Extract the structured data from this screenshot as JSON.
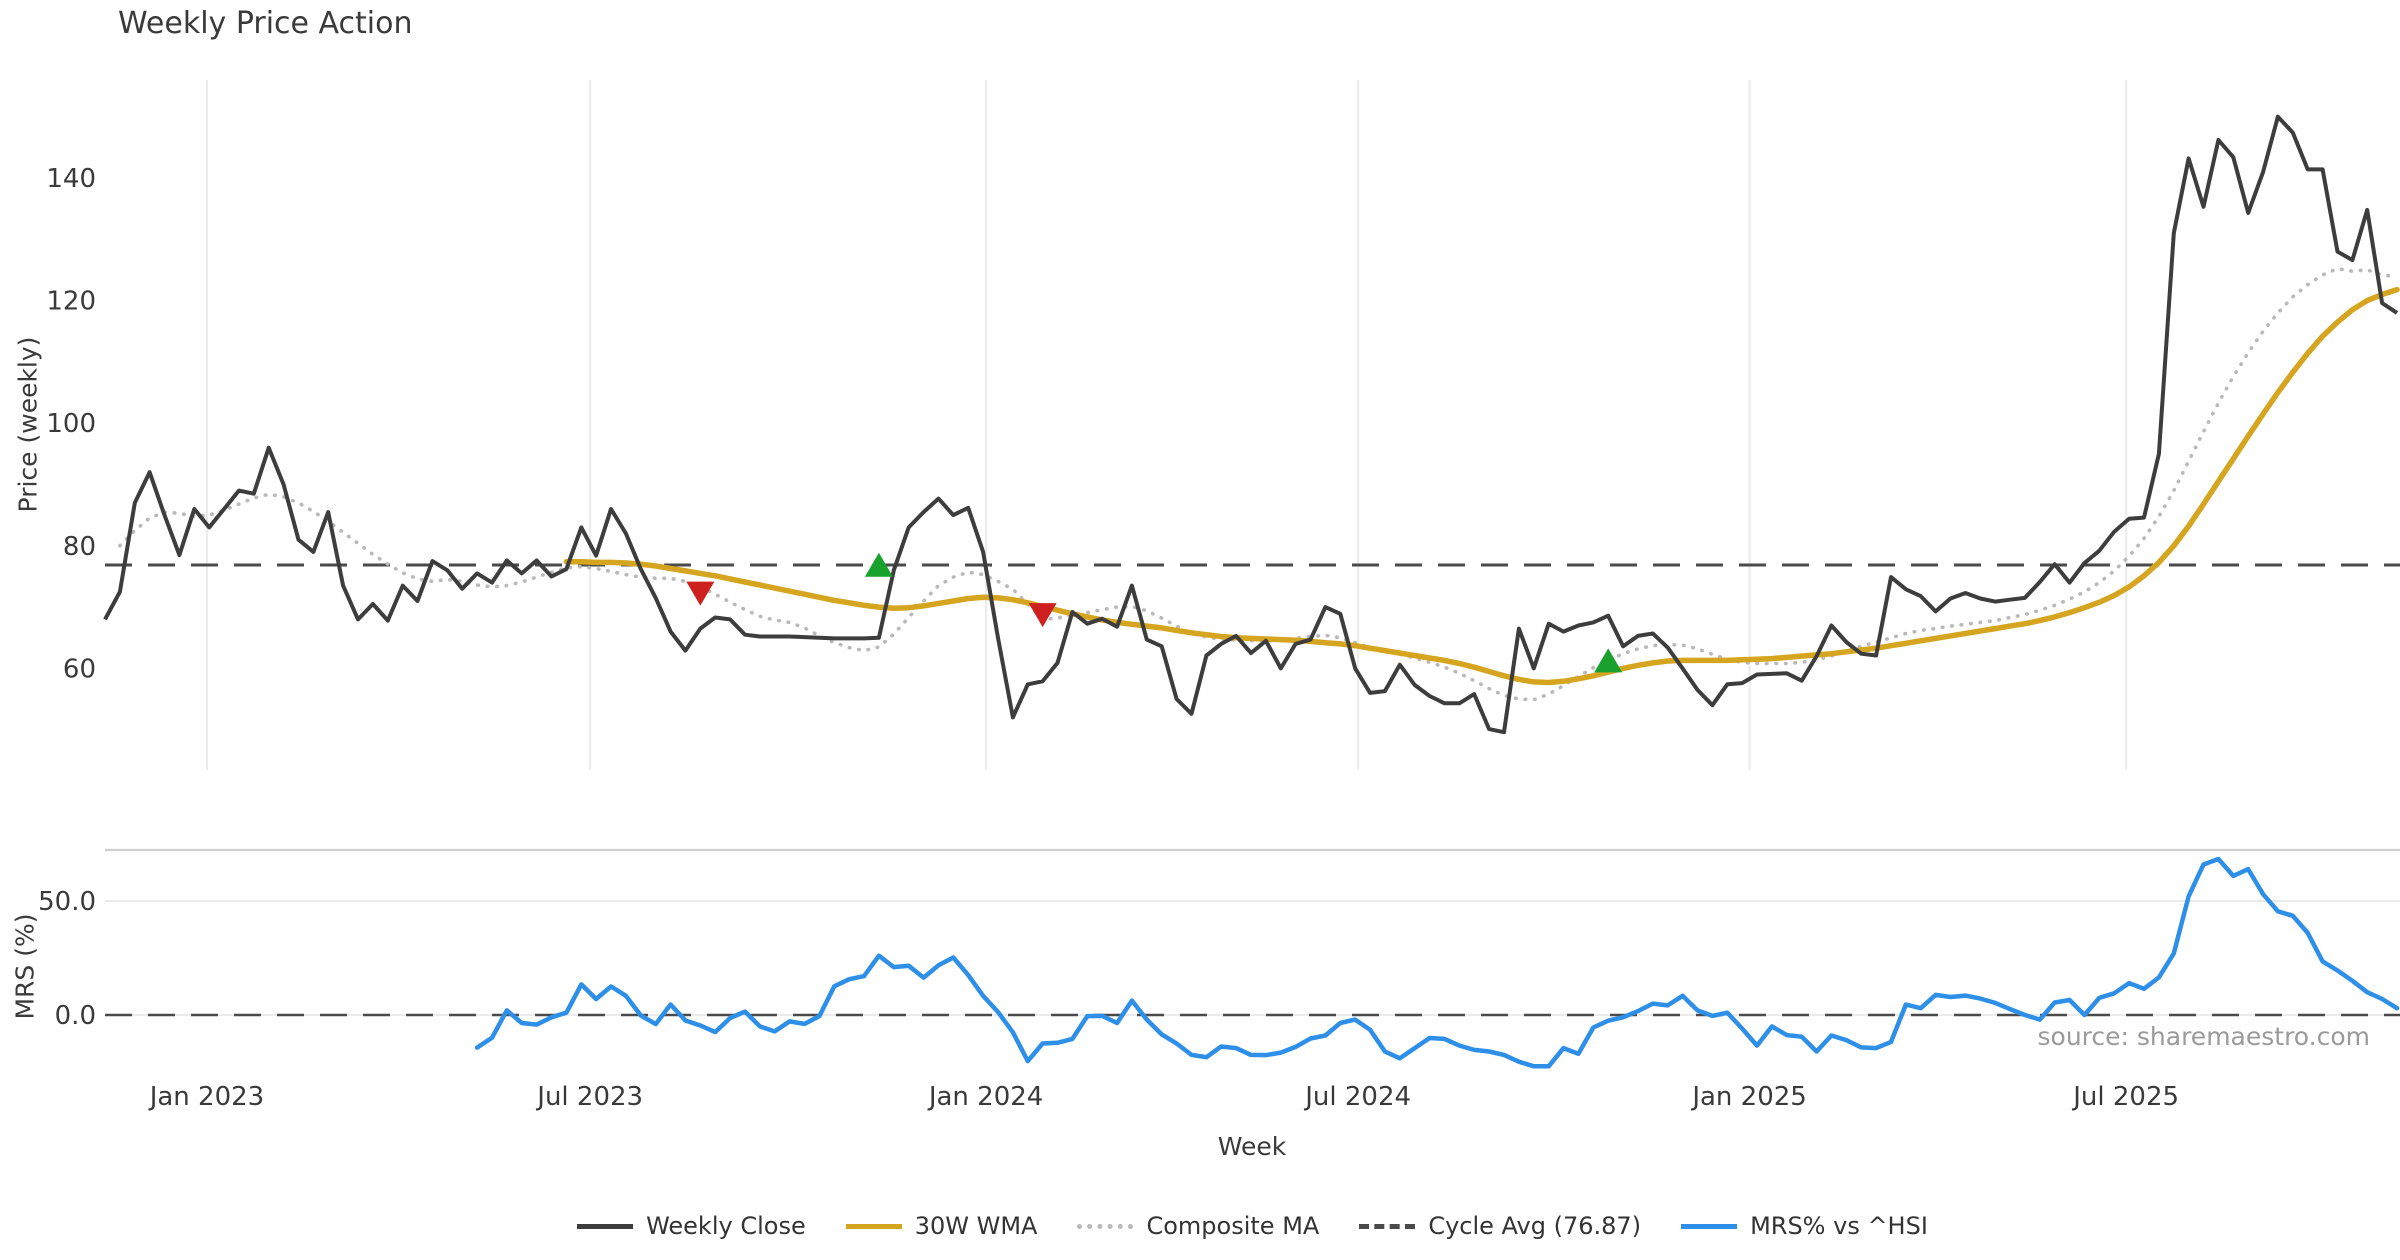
{
  "title": "Weekly Price Action",
  "source_note": "source: sharemaestro.com",
  "axes": {
    "price_label": "Price (weekly)",
    "mrs_label": "MRS (%)",
    "x_label": "Week"
  },
  "colors": {
    "close": "#3d3d3d",
    "wma": "#d6a51f",
    "composite": "#b9b9b9",
    "cycle_avg": "#4a4a4a",
    "mrs": "#2d8fe8",
    "sell_marker": "#cf2020",
    "buy_marker": "#18a12c",
    "gridline": "#ebebeb",
    "panel_border": "#cfcfcf",
    "tick_text": "#3a3a3a"
  },
  "legend": [
    {
      "label": "Weekly Close",
      "style": "solid",
      "color": "#3d3d3d"
    },
    {
      "label": "30W WMA",
      "style": "solid",
      "color": "#d6a51f"
    },
    {
      "label": "Composite MA",
      "style": "dotted",
      "color": "#b9b9b9"
    },
    {
      "label": "Cycle Avg (76.87)",
      "style": "dashed",
      "color": "#4a4a4a"
    },
    {
      "label": "MRS% vs ^HSI",
      "style": "solid",
      "color": "#2d8fe8"
    }
  ],
  "chart_data": {
    "type": "line",
    "title": "Weekly Price Action",
    "xlabel": "Week",
    "ylabel_top": "Price (weekly)",
    "ylabel_bottom": "MRS (%)",
    "n_weeks": 155,
    "cycle_avg": 76.87,
    "price_ticks": [
      140,
      120,
      100,
      80,
      60
    ],
    "mrs_ticks": [
      {
        "label": "50.0",
        "value": 50
      },
      {
        "label": "0.0",
        "value": 0
      }
    ],
    "x_ticks": [
      {
        "label": "Jan 2023",
        "week": 6.85
      },
      {
        "label": "Jul 2023",
        "week": 32.6
      },
      {
        "label": "Jan 2024",
        "week": 59.2
      },
      {
        "label": "Jul 2024",
        "week": 84.2
      },
      {
        "label": "Jan 2025",
        "week": 110.5
      },
      {
        "label": "Jul 2025",
        "week": 135.8
      }
    ],
    "series": [
      {
        "name": "Weekly Close",
        "panel": "price",
        "start": 0,
        "values": [
          68,
          72.5,
          87,
          92,
          85,
          78.5,
          86,
          83,
          86,
          89,
          88.5,
          96,
          90,
          81,
          79,
          85.5,
          73.5,
          68,
          70.5,
          67.8,
          73.5,
          71,
          77.5,
          76,
          73,
          75.5,
          74,
          77.6,
          75.5,
          77.6,
          75,
          76.2,
          83,
          78.4,
          86,
          82,
          76.2,
          71.5,
          66,
          62.9,
          66.5,
          68.3,
          68,
          65.5,
          65.2,
          65.2,
          65.2,
          65.1,
          65,
          64.9,
          64.9,
          64.9,
          65,
          76,
          83,
          85.5,
          87.7,
          85,
          86.2,
          79,
          65,
          52,
          57.4,
          57.9,
          60.9,
          69.2,
          67.3,
          68.1,
          66.8,
          73.5,
          64.7,
          63.6,
          55,
          52.6,
          62.1,
          64,
          65.3,
          62.5,
          64.5,
          60,
          64,
          64.7,
          70,
          68.9,
          60,
          56,
          56.3,
          60.6,
          57.3,
          55.5,
          54.3,
          54.3,
          55.8,
          50.1,
          49.6,
          66.5,
          60,
          67.3,
          66,
          67,
          67.5,
          68.6,
          63.6,
          65.3,
          65.7,
          63.4,
          60,
          56.5,
          54,
          57.4,
          57.6,
          59,
          59.1,
          59.2,
          58,
          62,
          67,
          64.3,
          62.4,
          62.1,
          74.9,
          72.9,
          71.8,
          69.3,
          71.4,
          72.3,
          71.4,
          70.9,
          71.2,
          71.5,
          74.1,
          77,
          74,
          77.2,
          79.2,
          82.3,
          84.4,
          84.6,
          95,
          131,
          143.2,
          135.3,
          146.2,
          143.4,
          134.3,
          141,
          150,
          147.4,
          141.4,
          141.4,
          128,
          126.6,
          134.8,
          119.6,
          118
        ]
      },
      {
        "name": "30W WMA",
        "panel": "price",
        "start": 31,
        "values": [
          77.4,
          77.4,
          77.3,
          77.3,
          77.2,
          77.0,
          76.7,
          76.3,
          75.9,
          75.5,
          75.1,
          74.6,
          74.1,
          73.6,
          73.1,
          72.6,
          72.1,
          71.6,
          71.1,
          70.7,
          70.3,
          70.0,
          69.8,
          69.9,
          70.2,
          70.6,
          71.0,
          71.4,
          71.6,
          71.5,
          71.2,
          70.7,
          70.1,
          69.5,
          68.9,
          68.4,
          67.9,
          67.5,
          67.2,
          66.9,
          66.6,
          66.2,
          65.8,
          65.5,
          65.2,
          65.0,
          64.9,
          64.8,
          64.7,
          64.6,
          64.4,
          64.2,
          64.0,
          63.7,
          63.3,
          62.9,
          62.5,
          62.1,
          61.7,
          61.3,
          60.8,
          60.2,
          59.5,
          58.8,
          58.2,
          57.8,
          57.7,
          57.9,
          58.3,
          58.8,
          59.4,
          60.0,
          60.5,
          60.9,
          61.2,
          61.3,
          61.3,
          61.3,
          61.3,
          61.4,
          61.5,
          61.6,
          61.8,
          62.0,
          62.2,
          62.4,
          62.7,
          63.0,
          63.3,
          63.7,
          64.1,
          64.5,
          64.9,
          65.3,
          65.7,
          66.1,
          66.5,
          66.9,
          67.3,
          67.8,
          68.4,
          69.1,
          69.9,
          70.8,
          71.9,
          73.3,
          75.1,
          77.3,
          80.0,
          83.2,
          86.8,
          90.5,
          94.2,
          97.9,
          101.5,
          105.0,
          108.3,
          111.4,
          114.2,
          116.5,
          118.5,
          120.0,
          121.0,
          121.8
        ]
      },
      {
        "name": "Composite MA",
        "panel": "price",
        "start": 1,
        "values": [
          80,
          82.5,
          84.5,
          85.5,
          85.3,
          84.8,
          85.0,
          85.8,
          86.8,
          87.8,
          88.4,
          88.0,
          87.0,
          85.6,
          84.0,
          82.2,
          80.4,
          78.6,
          77.0,
          75.6,
          74.6,
          74.2,
          74.5,
          74.2,
          73.6,
          73.3,
          73.5,
          74.1,
          74.9,
          75.7,
          76.4,
          76.6,
          76.3,
          75.8,
          75.3,
          74.9,
          74.7,
          74.7,
          74.2,
          73.3,
          72.1,
          70.8,
          69.6,
          68.5,
          67.9,
          67.5,
          66.6,
          65.3,
          64.2,
          63.4,
          62.9,
          63.5,
          65.6,
          68.3,
          71.0,
          73.5,
          74.9,
          75.7,
          75.3,
          74.2,
          72.9,
          70.5,
          68.0,
          68.2,
          68.7,
          69.1,
          69.6,
          70.0,
          70.1,
          69.4,
          68.2,
          66.9,
          65.7,
          65.1,
          64.8,
          64.6,
          64.5,
          64.5,
          64.6,
          64.9,
          65.2,
          65.4,
          65.0,
          64.2,
          63.4,
          62.8,
          62.3,
          61.7,
          61.0,
          60.2,
          59.2,
          58.0,
          56.7,
          55.6,
          55.0,
          54.9,
          55.8,
          57.2,
          58.7,
          60.1,
          61.3,
          62.4,
          63.2,
          63.7,
          63.9,
          63.8,
          63.2,
          62.3,
          61.5,
          61.0,
          60.8,
          60.8,
          60.8,
          61.0,
          61.4,
          62.0,
          62.8,
          63.6,
          64.3,
          65.0,
          65.7,
          66.2,
          66.5,
          66.9,
          67.2,
          67.5,
          67.8,
          68.3,
          68.8,
          69.5,
          70.3,
          71.3,
          72.5,
          74.0,
          75.9,
          78.3,
          81.2,
          84.8,
          89.0,
          93.8,
          98.6,
          103.3,
          107.6,
          111.5,
          115.0,
          118.0,
          120.6,
          122.6,
          124.2,
          125.2,
          124.8,
          125.0,
          124.2,
          123.9
        ]
      },
      {
        "name": "MRS% vs ^HSI",
        "panel": "mrs",
        "start": 25,
        "values": [
          -14.3,
          -10,
          2,
          -3.5,
          -4.2,
          -1,
          1,
          13.4,
          7,
          12.5,
          8.4,
          -0.2,
          -4,
          4.6,
          -2.4,
          -4.6,
          -7.5,
          -1.3,
          1.5,
          -5,
          -7.2,
          -2.8,
          -3.9,
          -0.5,
          12.6,
          15.7,
          17,
          26,
          21,
          21.6,
          16.4,
          21.8,
          25.2,
          17.5,
          8.4,
          1.3,
          -7.6,
          -20.2,
          -12.5,
          -12.2,
          -10.5,
          -0.5,
          -0.4,
          -3.5,
          6.3,
          -2,
          -8.5,
          -12.5,
          -17.5,
          -18.5,
          -13.8,
          -14.5,
          -17.5,
          -17.6,
          -16.5,
          -14,
          -10.3,
          -9,
          -3.5,
          -2,
          -6.5,
          -16,
          -19,
          -14.5,
          -10.1,
          -10.5,
          -13.4,
          -15.3,
          -16,
          -17.5,
          -20.5,
          -22.5,
          -22.5,
          -14.5,
          -17,
          -5.5,
          -2.5,
          -1,
          1.7,
          5,
          4.2,
          8.4,
          2,
          -0.4,
          1,
          -5.9,
          -13.4,
          -5,
          -8.8,
          -9.5,
          -16,
          -9,
          -11,
          -14.2,
          -14.5,
          -11.8,
          4.6,
          3,
          8.8,
          7.9,
          8.5,
          7.2,
          5.3,
          2.6,
          0,
          -2,
          5.5,
          6.6,
          0,
          7.5,
          9.5,
          14,
          11.5,
          16.5,
          27,
          52,
          66,
          68.4,
          61,
          64,
          53,
          45.5,
          43.5,
          36,
          23.5,
          19.5,
          15,
          10,
          7,
          3
        ]
      },
      {
        "name": "Cycle Avg",
        "panel": "price",
        "constant": 76.87
      }
    ],
    "markers": [
      {
        "week": 40,
        "price": 72.2,
        "type": "sell"
      },
      {
        "week": 52,
        "price": 76.9,
        "type": "buy"
      },
      {
        "week": 63,
        "price": 68.7,
        "type": "sell"
      },
      {
        "week": 101,
        "price": 61.3,
        "type": "buy"
      }
    ],
    "layout_hints": {
      "price_ylim_px": "140->y178, 6.13px per unit",
      "mrs_ylim": [
        -30,
        75
      ],
      "grid": "vertical lines on month ticks (price panel only)",
      "legend_position": "bottom center"
    }
  }
}
